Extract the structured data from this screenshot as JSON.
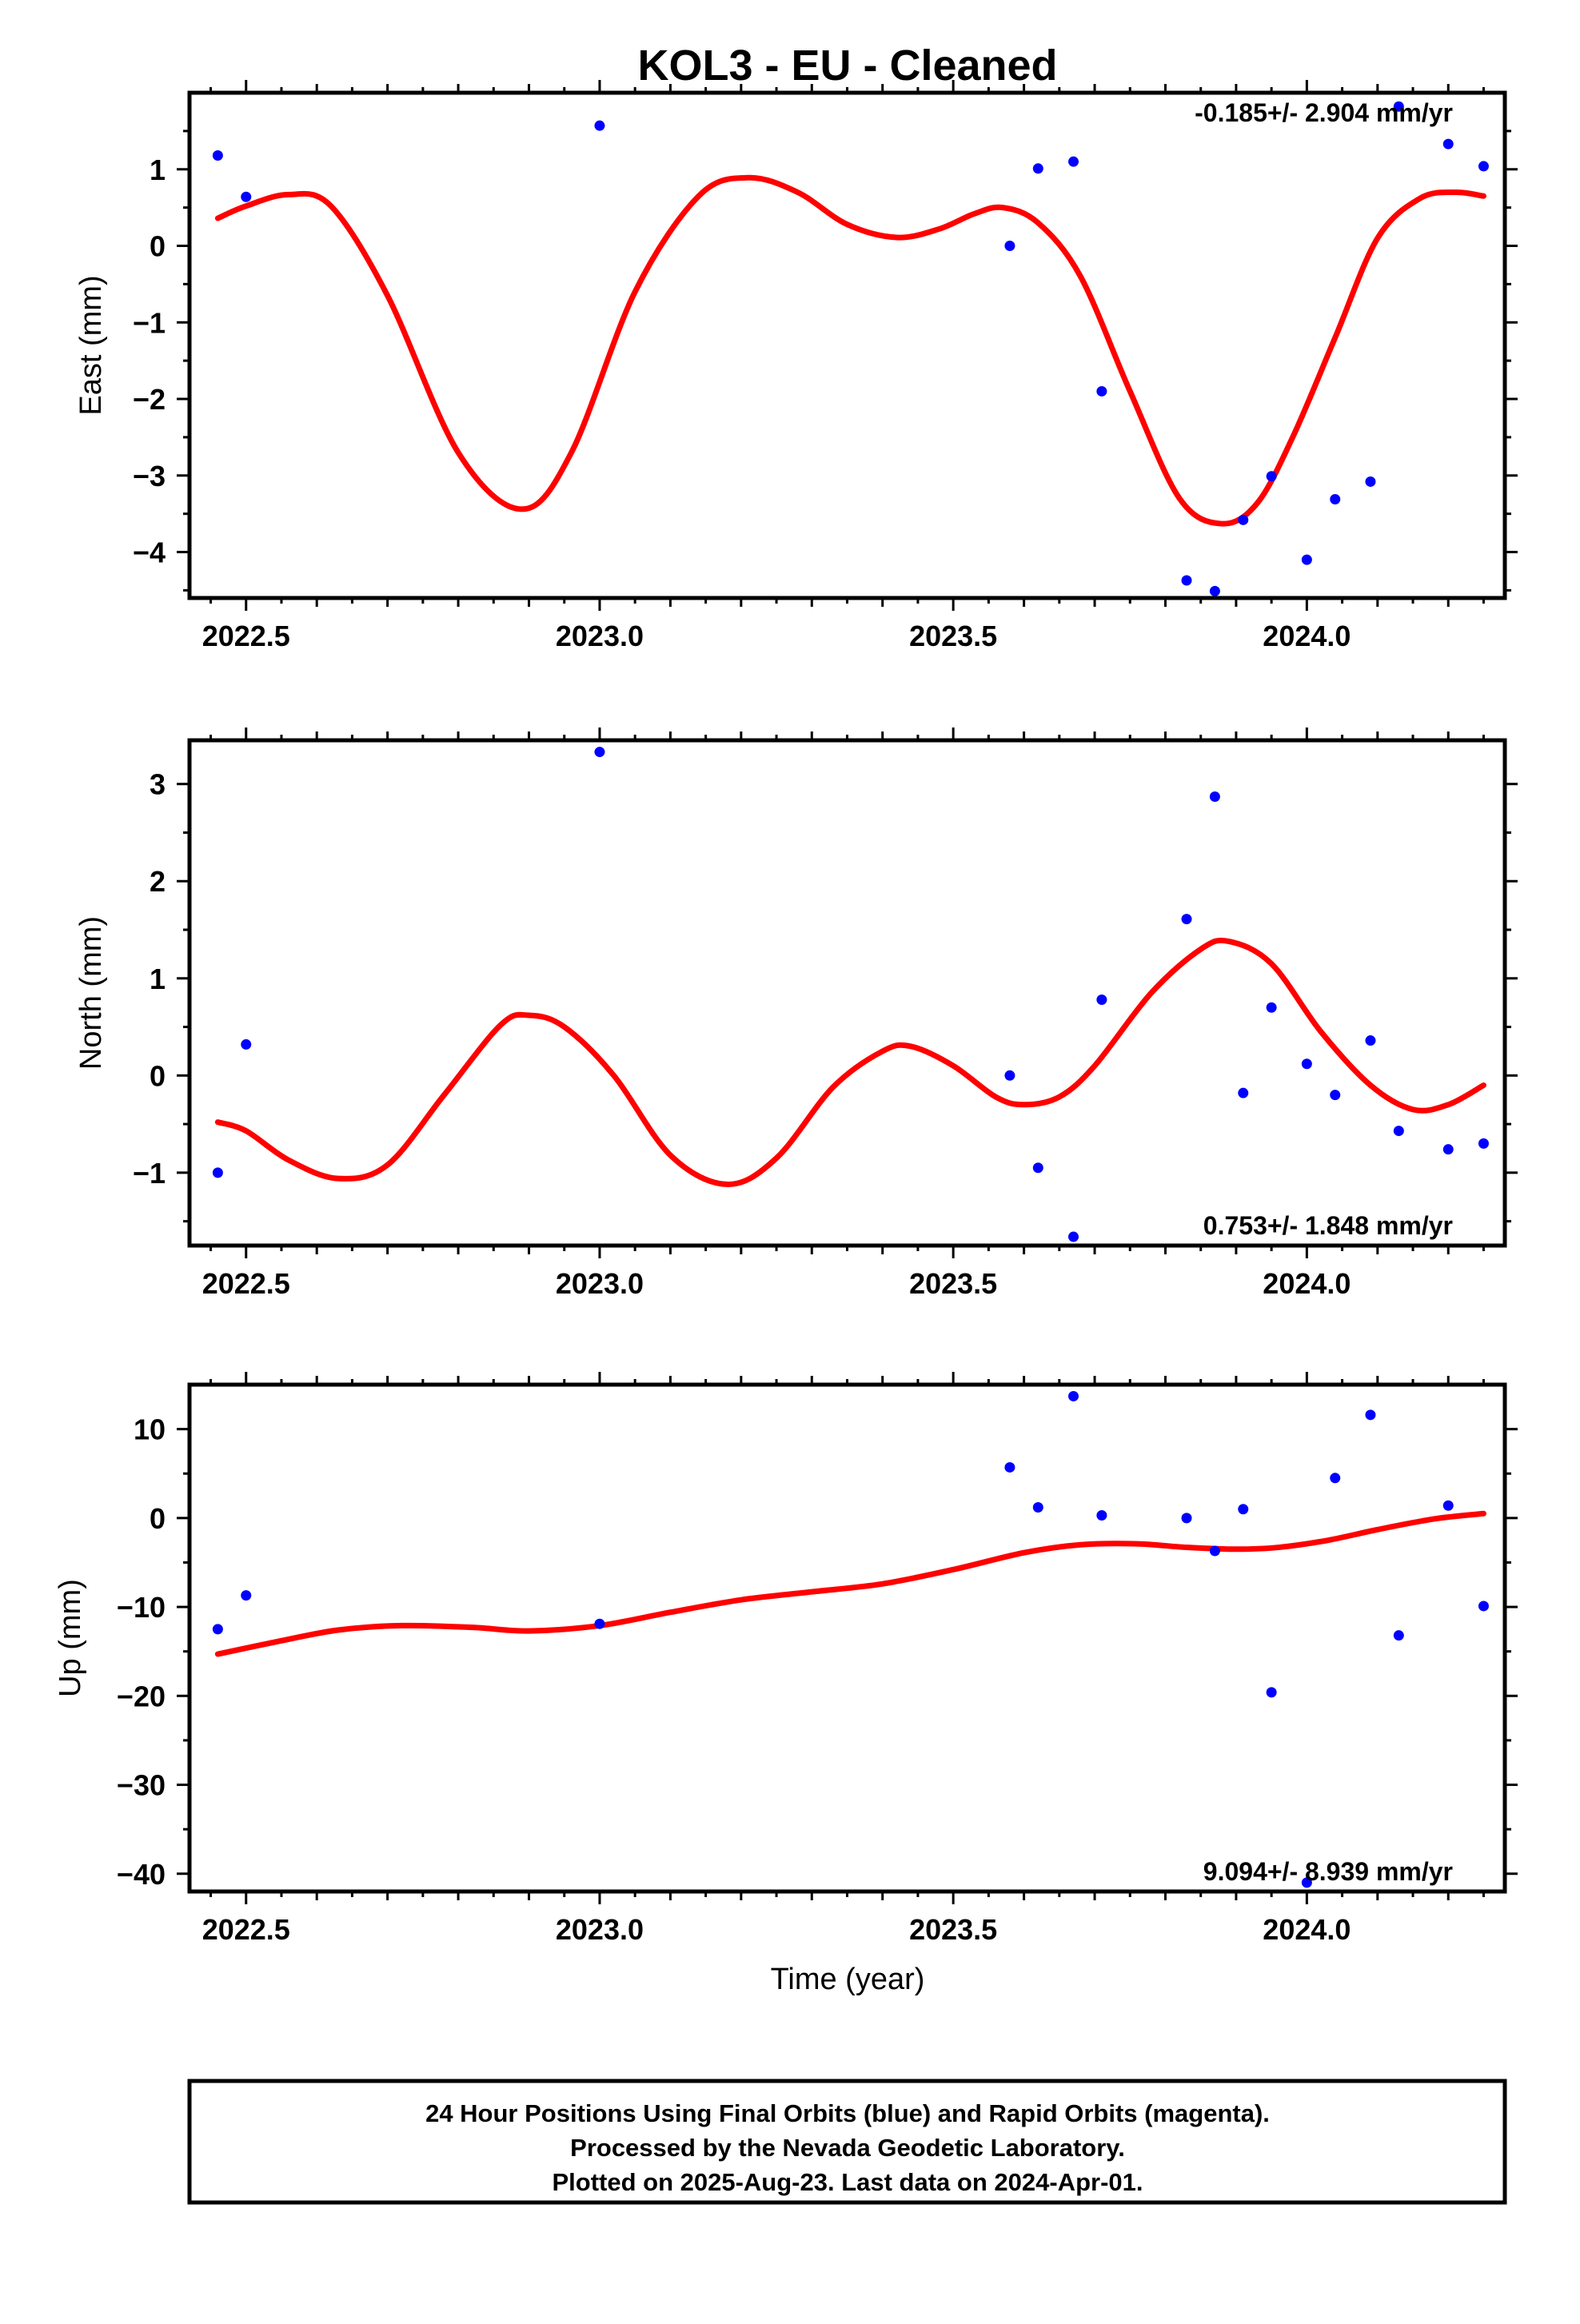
{
  "chart_data": {
    "type": "scatter",
    "title": "KOL3  - EU - Cleaned",
    "xlabel": "Time (year)",
    "xlim": [
      2022.42,
      2024.28
    ],
    "x_ticks": [
      2022.5,
      2023.0,
      2023.5,
      2024.0
    ],
    "x_tick_labels": [
      "2022.5",
      "2023.0",
      "2023.5",
      "2024.0"
    ],
    "colors": {
      "points": "#0000ff",
      "fit": "#ff0000",
      "frame": "#000000"
    },
    "panels": [
      {
        "ylabel": "East (mm)",
        "ylim": [
          -4.6,
          2.0
        ],
        "y_ticks": [
          1,
          0,
          -1,
          -2,
          -3,
          -4
        ],
        "y_tick_labels": [
          "1",
          "0",
          "−1",
          "−2",
          "−3",
          "−4"
        ],
        "rate_label": "-0.185+/- 2.904 mm/yr",
        "rate_position": "top-right",
        "points": [
          [
            2022.46,
            1.18
          ],
          [
            2022.5,
            0.64
          ],
          [
            2023.0,
            1.57
          ],
          [
            2023.58,
            0.0
          ],
          [
            2023.62,
            1.01
          ],
          [
            2023.67,
            1.1
          ],
          [
            2023.71,
            -1.9
          ],
          [
            2023.83,
            -4.37
          ],
          [
            2023.87,
            -4.51
          ],
          [
            2023.91,
            -3.58
          ],
          [
            2023.95,
            -3.01
          ],
          [
            2024.0,
            -4.1
          ],
          [
            2024.04,
            -3.31
          ],
          [
            2024.09,
            -3.08
          ],
          [
            2024.13,
            1.82
          ],
          [
            2024.2,
            1.33
          ],
          [
            2024.25,
            1.04
          ]
        ],
        "fit": [
          [
            2022.46,
            0.36
          ],
          [
            2022.5,
            0.52
          ],
          [
            2022.56,
            0.67
          ],
          [
            2022.62,
            0.52
          ],
          [
            2022.7,
            -0.65
          ],
          [
            2022.8,
            -2.7
          ],
          [
            2022.89,
            -3.44
          ],
          [
            2022.96,
            -2.7
          ],
          [
            2023.05,
            -0.6
          ],
          [
            2023.14,
            0.65
          ],
          [
            2023.21,
            0.89
          ],
          [
            2023.28,
            0.7
          ],
          [
            2023.35,
            0.28
          ],
          [
            2023.42,
            0.11
          ],
          [
            2023.48,
            0.22
          ],
          [
            2023.53,
            0.42
          ],
          [
            2023.57,
            0.5
          ],
          [
            2023.62,
            0.3
          ],
          [
            2023.68,
            -0.4
          ],
          [
            2023.75,
            -1.9
          ],
          [
            2023.82,
            -3.3
          ],
          [
            2023.88,
            -3.63
          ],
          [
            2023.93,
            -3.36
          ],
          [
            2023.98,
            -2.5
          ],
          [
            2024.04,
            -1.2
          ],
          [
            2024.1,
            0.1
          ],
          [
            2024.16,
            0.62
          ],
          [
            2024.21,
            0.7
          ],
          [
            2024.25,
            0.65
          ]
        ]
      },
      {
        "ylabel": "North (mm)",
        "ylim": [
          -1.75,
          3.45
        ],
        "y_ticks": [
          3,
          2,
          1,
          0,
          -1
        ],
        "y_tick_labels": [
          "3",
          "2",
          "1",
          "0",
          "−1"
        ],
        "rate_label": "0.753+/- 1.848 mm/yr",
        "rate_position": "bottom-right",
        "points": [
          [
            2022.46,
            -1.0
          ],
          [
            2022.5,
            0.32
          ],
          [
            2023.0,
            3.33
          ],
          [
            2023.58,
            0.0
          ],
          [
            2023.62,
            -0.95
          ],
          [
            2023.67,
            -1.66
          ],
          [
            2023.71,
            0.78
          ],
          [
            2023.83,
            1.61
          ],
          [
            2023.87,
            2.87
          ],
          [
            2023.91,
            -0.18
          ],
          [
            2023.95,
            0.7
          ],
          [
            2024.0,
            0.12
          ],
          [
            2024.04,
            -0.2
          ],
          [
            2024.09,
            0.36
          ],
          [
            2024.13,
            -0.57
          ],
          [
            2024.2,
            -0.76
          ],
          [
            2024.25,
            -0.7
          ]
        ],
        "fit": [
          [
            2022.46,
            -0.48
          ],
          [
            2022.5,
            -0.57
          ],
          [
            2022.56,
            -0.87
          ],
          [
            2022.63,
            -1.06
          ],
          [
            2022.7,
            -0.92
          ],
          [
            2022.78,
            -0.2
          ],
          [
            2022.86,
            0.52
          ],
          [
            2022.9,
            0.62
          ],
          [
            2022.95,
            0.5
          ],
          [
            2023.02,
            0.0
          ],
          [
            2023.1,
            -0.82
          ],
          [
            2023.18,
            -1.12
          ],
          [
            2023.25,
            -0.85
          ],
          [
            2023.33,
            -0.12
          ],
          [
            2023.4,
            0.25
          ],
          [
            2023.44,
            0.3
          ],
          [
            2023.5,
            0.1
          ],
          [
            2023.56,
            -0.22
          ],
          [
            2023.6,
            -0.3
          ],
          [
            2023.65,
            -0.22
          ],
          [
            2023.7,
            0.1
          ],
          [
            2023.78,
            0.85
          ],
          [
            2023.85,
            1.3
          ],
          [
            2023.89,
            1.38
          ],
          [
            2023.95,
            1.15
          ],
          [
            2024.02,
            0.45
          ],
          [
            2024.09,
            -0.1
          ],
          [
            2024.15,
            -0.35
          ],
          [
            2024.2,
            -0.3
          ],
          [
            2024.25,
            -0.1
          ]
        ]
      },
      {
        "ylabel": "Up (mm)",
        "ylim": [
          -42,
          15
        ],
        "y_ticks": [
          10,
          0,
          -10,
          -20,
          -30,
          -40
        ],
        "y_tick_labels": [
          "10",
          "0",
          "−10",
          "−20",
          "−30",
          "−40"
        ],
        "rate_label": "9.094+/- 8.939 mm/yr",
        "rate_position": "bottom-right",
        "points": [
          [
            2022.46,
            -12.5
          ],
          [
            2022.5,
            -8.7
          ],
          [
            2023.0,
            -11.9
          ],
          [
            2023.58,
            5.7
          ],
          [
            2023.62,
            1.2
          ],
          [
            2023.67,
            13.7
          ],
          [
            2023.71,
            0.3
          ],
          [
            2023.83,
            0.0
          ],
          [
            2023.87,
            -3.7
          ],
          [
            2023.91,
            1.0
          ],
          [
            2023.95,
            -19.6
          ],
          [
            2024.0,
            -41.0
          ],
          [
            2024.04,
            4.5
          ],
          [
            2024.09,
            11.6
          ],
          [
            2024.13,
            -13.2
          ],
          [
            2024.2,
            1.4
          ],
          [
            2024.25,
            -9.9
          ]
        ],
        "fit": [
          [
            2022.46,
            -15.3
          ],
          [
            2022.55,
            -13.8
          ],
          [
            2022.63,
            -12.6
          ],
          [
            2022.72,
            -12.1
          ],
          [
            2022.82,
            -12.3
          ],
          [
            2022.9,
            -12.7
          ],
          [
            2023.0,
            -12.1
          ],
          [
            2023.1,
            -10.6
          ],
          [
            2023.2,
            -9.2
          ],
          [
            2023.3,
            -8.3
          ],
          [
            2023.4,
            -7.4
          ],
          [
            2023.5,
            -5.8
          ],
          [
            2023.6,
            -3.9
          ],
          [
            2023.68,
            -3.0
          ],
          [
            2023.76,
            -2.9
          ],
          [
            2023.83,
            -3.3
          ],
          [
            2023.9,
            -3.5
          ],
          [
            2023.96,
            -3.3
          ],
          [
            2024.03,
            -2.5
          ],
          [
            2024.1,
            -1.3
          ],
          [
            2024.18,
            -0.1
          ],
          [
            2024.25,
            0.5
          ]
        ]
      }
    ]
  },
  "footer": {
    "lines": [
      "24 Hour Positions Using Final Orbits (blue) and Rapid Orbits (magenta).",
      "Processed by the Nevada Geodetic Laboratory.",
      "Plotted on 2025-Aug-23. Last data on 2024-Apr-01."
    ]
  }
}
